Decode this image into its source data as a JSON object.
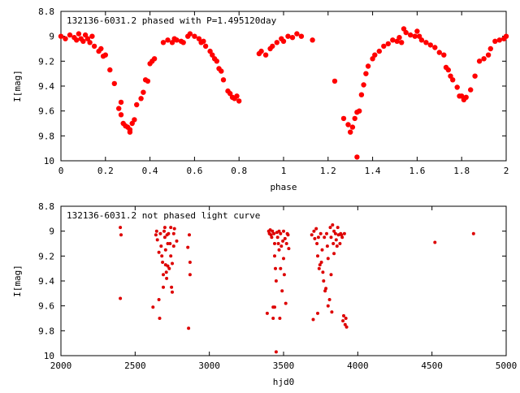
{
  "chart_data": [
    {
      "type": "scatter",
      "title": "132136-6031.2 phased with P=1.495120day",
      "xlabel": "phase",
      "ylabel": "I[mag]",
      "xlim": [
        0,
        2
      ],
      "ylim": [
        8.8,
        10
      ],
      "y_inverted": true,
      "x_ticks": [
        "0",
        "0.2",
        "0.4",
        "0.6",
        "0.8",
        "1",
        "1.2",
        "1.4",
        "1.6",
        "1.8",
        "2"
      ],
      "y_ticks": [
        "8.8",
        "9",
        "9.2",
        "9.4",
        "9.6",
        "9.8",
        "10"
      ],
      "marker_color": "#ff0000",
      "series": [
        {
          "points": [
            [
              0.0,
              9.0
            ],
            [
              0.02,
              9.02
            ],
            [
              0.04,
              8.99
            ],
            [
              0.06,
              9.01
            ],
            [
              0.07,
              9.03
            ],
            [
              0.08,
              8.98
            ],
            [
              0.09,
              9.02
            ],
            [
              0.1,
              9.04
            ],
            [
              0.11,
              8.99
            ],
            [
              0.12,
              9.02
            ],
            [
              0.13,
              9.05
            ],
            [
              0.14,
              9.0
            ],
            [
              0.15,
              9.08
            ],
            [
              0.17,
              9.12
            ],
            [
              0.18,
              9.1
            ],
            [
              0.19,
              9.16
            ],
            [
              0.2,
              9.15
            ],
            [
              0.22,
              9.27
            ],
            [
              0.24,
              9.38
            ],
            [
              0.26,
              9.58
            ],
            [
              0.27,
              9.63
            ],
            [
              0.27,
              9.53
            ],
            [
              0.28,
              9.7
            ],
            [
              0.29,
              9.72
            ],
            [
              0.3,
              9.73
            ],
            [
              0.31,
              9.75
            ],
            [
              0.31,
              9.77
            ],
            [
              0.32,
              9.7
            ],
            [
              0.33,
              9.67
            ],
            [
              0.34,
              9.55
            ],
            [
              0.36,
              9.5
            ],
            [
              0.37,
              9.45
            ],
            [
              0.38,
              9.35
            ],
            [
              0.39,
              9.36
            ],
            [
              0.4,
              9.22
            ],
            [
              0.41,
              9.2
            ],
            [
              0.42,
              9.18
            ],
            [
              0.46,
              9.05
            ],
            [
              0.48,
              9.03
            ],
            [
              0.5,
              9.05
            ],
            [
              0.51,
              9.02
            ],
            [
              0.52,
              9.03
            ],
            [
              0.54,
              9.04
            ],
            [
              0.55,
              9.05
            ],
            [
              0.57,
              9.0
            ],
            [
              0.58,
              8.98
            ],
            [
              0.6,
              9.0
            ],
            [
              0.62,
              9.02
            ],
            [
              0.63,
              9.05
            ],
            [
              0.64,
              9.04
            ],
            [
              0.65,
              9.08
            ],
            [
              0.67,
              9.12
            ],
            [
              0.68,
              9.15
            ],
            [
              0.69,
              9.18
            ],
            [
              0.7,
              9.2
            ],
            [
              0.71,
              9.26
            ],
            [
              0.72,
              9.28
            ],
            [
              0.73,
              9.35
            ],
            [
              0.75,
              9.44
            ],
            [
              0.76,
              9.46
            ],
            [
              0.77,
              9.49
            ],
            [
              0.78,
              9.5
            ],
            [
              0.79,
              9.48
            ],
            [
              0.8,
              9.52
            ],
            [
              0.89,
              9.14
            ],
            [
              0.9,
              9.12
            ],
            [
              0.92,
              9.15
            ],
            [
              0.94,
              9.1
            ],
            [
              0.95,
              9.08
            ],
            [
              0.97,
              9.05
            ],
            [
              0.99,
              9.02
            ],
            [
              1.0,
              9.04
            ],
            [
              1.02,
              9.0
            ],
            [
              1.04,
              9.01
            ],
            [
              1.06,
              8.98
            ],
            [
              1.08,
              9.0
            ],
            [
              1.13,
              9.03
            ],
            [
              1.23,
              9.36
            ],
            [
              1.27,
              9.66
            ],
            [
              1.29,
              9.71
            ],
            [
              1.3,
              9.77
            ],
            [
              1.31,
              9.73
            ],
            [
              1.32,
              9.66
            ],
            [
              1.33,
              9.61
            ],
            [
              1.33,
              9.97
            ],
            [
              1.34,
              9.6
            ],
            [
              1.35,
              9.47
            ],
            [
              1.36,
              9.39
            ],
            [
              1.37,
              9.3
            ],
            [
              1.38,
              9.24
            ],
            [
              1.4,
              9.18
            ],
            [
              1.41,
              9.15
            ],
            [
              1.43,
              9.12
            ],
            [
              1.45,
              9.08
            ],
            [
              1.47,
              9.06
            ],
            [
              1.49,
              9.03
            ],
            [
              1.51,
              9.04
            ],
            [
              1.52,
              9.01
            ],
            [
              1.53,
              9.05
            ],
            [
              1.54,
              8.94
            ],
            [
              1.55,
              8.97
            ],
            [
              1.57,
              8.99
            ],
            [
              1.59,
              9.0
            ],
            [
              1.6,
              8.96
            ],
            [
              1.61,
              9.0
            ],
            [
              1.62,
              9.03
            ],
            [
              1.64,
              9.05
            ],
            [
              1.66,
              9.07
            ],
            [
              1.68,
              9.09
            ],
            [
              1.7,
              9.13
            ],
            [
              1.72,
              9.15
            ],
            [
              1.73,
              9.25
            ],
            [
              1.74,
              9.27
            ],
            [
              1.75,
              9.32
            ],
            [
              1.76,
              9.35
            ],
            [
              1.78,
              9.41
            ],
            [
              1.79,
              9.48
            ],
            [
              1.8,
              9.48
            ],
            [
              1.81,
              9.51
            ],
            [
              1.82,
              9.49
            ],
            [
              1.84,
              9.43
            ],
            [
              1.86,
              9.32
            ],
            [
              1.88,
              9.2
            ],
            [
              1.9,
              9.18
            ],
            [
              1.92,
              9.15
            ],
            [
              1.93,
              9.1
            ],
            [
              1.95,
              9.04
            ],
            [
              1.97,
              9.03
            ],
            [
              1.99,
              9.02
            ],
            [
              2.0,
              9.0
            ]
          ]
        }
      ]
    },
    {
      "type": "scatter",
      "title": "132136-6031.2 not phased light curve",
      "xlabel": "hjd0",
      "ylabel": "I[mag]",
      "xlim": [
        2000,
        5000
      ],
      "ylim": [
        8.8,
        10
      ],
      "y_inverted": true,
      "x_ticks": [
        "2000",
        "2500",
        "3000",
        "3500",
        "4000",
        "4500",
        "5000"
      ],
      "y_ticks": [
        "8.8",
        "9",
        "9.2",
        "9.4",
        "9.6",
        "9.8",
        "10"
      ],
      "marker_color": "#dd0000",
      "series": [
        {
          "points": [
            [
              2400,
              8.97
            ],
            [
              2405,
              9.03
            ],
            [
              2400,
              9.54
            ],
            [
              2620,
              9.61
            ],
            [
              2640,
              9.03
            ],
            [
              2645,
              9.0
            ],
            [
              2650,
              9.07
            ],
            [
              2660,
              9.17
            ],
            [
              2660,
              9.55
            ],
            [
              2665,
              9.7
            ],
            [
              2670,
              9.02
            ],
            [
              2675,
              9.12
            ],
            [
              2680,
              9.2
            ],
            [
              2685,
              9.25
            ],
            [
              2690,
              9.35
            ],
            [
              2690,
              9.45
            ],
            [
              2695,
              9.0
            ],
            [
              2700,
              8.97
            ],
            [
              2700,
              9.05
            ],
            [
              2705,
              9.15
            ],
            [
              2705,
              9.27
            ],
            [
              2710,
              9.33
            ],
            [
              2712,
              9.38
            ],
            [
              2715,
              9.03
            ],
            [
              2720,
              9.1
            ],
            [
              2720,
              9.28
            ],
            [
              2725,
              9.02
            ],
            [
              2730,
              9.3
            ],
            [
              2735,
              9.1
            ],
            [
              2740,
              8.97
            ],
            [
              2740,
              9.2
            ],
            [
              2745,
              9.45
            ],
            [
              2750,
              9.49
            ],
            [
              2750,
              9.26
            ],
            [
              2760,
              9.02
            ],
            [
              2760,
              9.12
            ],
            [
              2765,
              8.98
            ],
            [
              2780,
              9.08
            ],
            [
              2855,
              9.13
            ],
            [
              2860,
              9.78
            ],
            [
              2865,
              9.03
            ],
            [
              2870,
              9.25
            ],
            [
              2870,
              9.35
            ],
            [
              3390,
              9.66
            ],
            [
              3400,
              9.0
            ],
            [
              3405,
              9.02
            ],
            [
              3410,
              8.99
            ],
            [
              3415,
              9.03
            ],
            [
              3420,
              9.05
            ],
            [
              3425,
              9.0
            ],
            [
              3430,
              9.7
            ],
            [
              3430,
              9.61
            ],
            [
              3435,
              9.02
            ],
            [
              3440,
              9.1
            ],
            [
              3440,
              9.2
            ],
            [
              3440,
              9.61
            ],
            [
              3445,
              9.3
            ],
            [
              3450,
              9.4
            ],
            [
              3450,
              9.97
            ],
            [
              3455,
              9.01
            ],
            [
              3460,
              9.05
            ],
            [
              3465,
              9.1
            ],
            [
              3470,
              9.0
            ],
            [
              3470,
              9.15
            ],
            [
              3475,
              9.7
            ],
            [
              3480,
              9.02
            ],
            [
              3480,
              9.3
            ],
            [
              3485,
              9.12
            ],
            [
              3490,
              9.48
            ],
            [
              3495,
              9.08
            ],
            [
              3500,
              9.0
            ],
            [
              3500,
              9.22
            ],
            [
              3505,
              9.35
            ],
            [
              3510,
              9.06
            ],
            [
              3515,
              9.58
            ],
            [
              3520,
              9.1
            ],
            [
              3525,
              9.02
            ],
            [
              3530,
              9.03
            ],
            [
              3535,
              9.14
            ],
            [
              3690,
              9.03
            ],
            [
              3700,
              9.71
            ],
            [
              3705,
              9.0
            ],
            [
              3710,
              9.06
            ],
            [
              3720,
              8.98
            ],
            [
              3725,
              9.1
            ],
            [
              3730,
              9.66
            ],
            [
              3730,
              9.2
            ],
            [
              3735,
              9.05
            ],
            [
              3740,
              9.3
            ],
            [
              3745,
              9.27
            ],
            [
              3750,
              9.02
            ],
            [
              3755,
              9.25
            ],
            [
              3760,
              9.15
            ],
            [
              3765,
              9.33
            ],
            [
              3770,
              9.4
            ],
            [
              3775,
              9.05
            ],
            [
              3780,
              9.48
            ],
            [
              3785,
              9.46
            ],
            [
              3790,
              9.02
            ],
            [
              3795,
              9.12
            ],
            [
              3800,
              9.22
            ],
            [
              3800,
              9.6
            ],
            [
              3810,
              9.55
            ],
            [
              3815,
              8.97
            ],
            [
              3820,
              9.05
            ],
            [
              3820,
              9.35
            ],
            [
              3825,
              9.65
            ],
            [
              3830,
              8.95
            ],
            [
              3835,
              9.1
            ],
            [
              3840,
              9.0
            ],
            [
              3840,
              9.18
            ],
            [
              3850,
              9.02
            ],
            [
              3855,
              9.07
            ],
            [
              3860,
              9.12
            ],
            [
              3865,
              8.97
            ],
            [
              3870,
              9.03
            ],
            [
              3880,
              9.1
            ],
            [
              3885,
              9.02
            ],
            [
              3890,
              9.03
            ],
            [
              3895,
              9.05
            ],
            [
              3900,
              9.72
            ],
            [
              3905,
              9.68
            ],
            [
              3910,
              9.02
            ],
            [
              3915,
              9.75
            ],
            [
              3920,
              9.7
            ],
            [
              3925,
              9.77
            ],
            [
              4520,
              9.09
            ],
            [
              4780,
              9.02
            ]
          ]
        }
      ]
    }
  ]
}
